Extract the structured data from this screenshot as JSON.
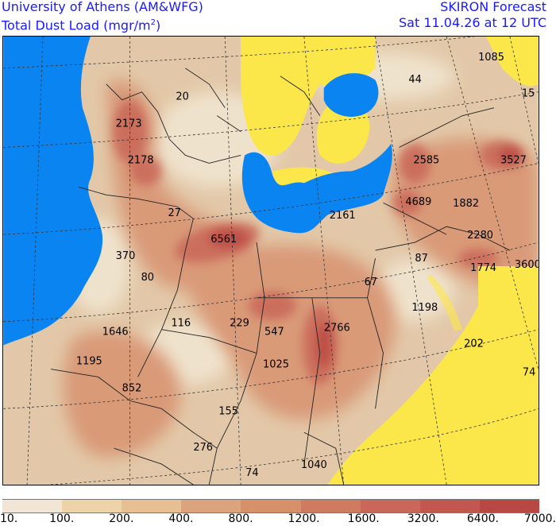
{
  "header": {
    "institution": "University of Athens (AM&WFG)",
    "field_main": "Total Dust Load (mgr/m",
    "field_sup": "2",
    "field_close": ")",
    "forecast": "SKIRON Forecast",
    "valid_time": "Sat 11.04.26 at 12 UTC"
  },
  "colors": {
    "sea": "#0a84f0",
    "low_dust_yellow": "#fbe74a",
    "land_base": "#e2c8a8"
  },
  "legend": {
    "colors": [
      "#f1e6d6",
      "#eed2a8",
      "#e8bf92",
      "#dca47c",
      "#d6906a",
      "#cf7b62",
      "#c96858",
      "#c2574f",
      "#b94743"
    ],
    "labels": [
      "10.",
      "100.",
      "200.",
      "400.",
      "800.",
      "1200.",
      "1600.",
      "3200.",
      "6400.",
      "7000."
    ]
  },
  "map_labels": [
    {
      "text": "1085"
    },
    {
      "text": "44"
    },
    {
      "text": "15"
    },
    {
      "text": "20"
    },
    {
      "text": "2173"
    },
    {
      "text": "2178"
    },
    {
      "text": "2585"
    },
    {
      "text": "3527"
    },
    {
      "text": "27"
    },
    {
      "text": "2161"
    },
    {
      "text": "4689"
    },
    {
      "text": "1882"
    },
    {
      "text": "6561"
    },
    {
      "text": "2280"
    },
    {
      "text": "370"
    },
    {
      "text": "87"
    },
    {
      "text": "1774"
    },
    {
      "text": "3600"
    },
    {
      "text": "80"
    },
    {
      "text": "67"
    },
    {
      "text": "1198"
    },
    {
      "text": "116"
    },
    {
      "text": "229"
    },
    {
      "text": "547"
    },
    {
      "text": "2766"
    },
    {
      "text": "1646"
    },
    {
      "text": "202"
    },
    {
      "text": "1195"
    },
    {
      "text": "1025"
    },
    {
      "text": "74"
    },
    {
      "text": "852"
    },
    {
      "text": "155"
    },
    {
      "text": "276"
    },
    {
      "text": "1040"
    },
    {
      "text": "74"
    }
  ]
}
